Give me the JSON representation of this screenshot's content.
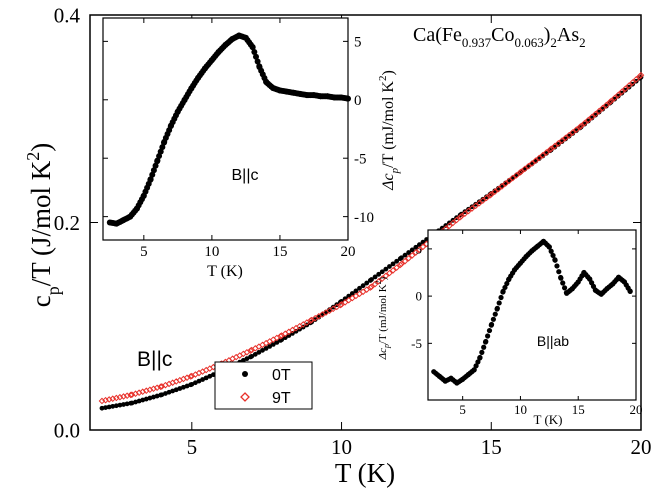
{
  "chart_data": [
    {
      "type": "scatter",
      "role": "main",
      "xlabel": "T (K)",
      "ylabel_main": "c",
      "ylabel_sub": "p",
      "ylabel_tail": "/T (J/mol K",
      "ylabel_sup": "2",
      "ylabel_end": ")",
      "xlim": [
        1.6,
        20
      ],
      "ylim": [
        0,
        0.4
      ],
      "xticks": [
        5,
        10,
        15,
        20
      ],
      "yticks": [
        0.0,
        0.2,
        0.4
      ],
      "xtick_labels": [
        "5",
        "10",
        "15",
        "20"
      ],
      "ytick_labels": [
        "0.0",
        "0.2",
        "0.4"
      ],
      "annotation_formula": {
        "pre": "Ca(Fe",
        "sub1": "0.937",
        "mid": "Co",
        "sub2": "0.063",
        "post": ")",
        "sub3": "2",
        "tail": "As",
        "sub4": "2"
      },
      "annotation_field": "B||c",
      "legend_position": "bottom-center",
      "series": [
        {
          "name": "0T",
          "marker": "filled-circle",
          "color": "#000000",
          "x": [
            2,
            3,
            4,
            5,
            6,
            7,
            8,
            9,
            10,
            11,
            12,
            13,
            14,
            15,
            16,
            17,
            18,
            19,
            20
          ],
          "y": [
            0.021,
            0.026,
            0.034,
            0.044,
            0.057,
            0.071,
            0.087,
            0.104,
            0.124,
            0.145,
            0.166,
            0.187,
            0.208,
            0.228,
            0.249,
            0.27,
            0.292,
            0.316,
            0.34
          ]
        },
        {
          "name": "9T",
          "marker": "open-diamond",
          "color": "#e8302a",
          "x": [
            2,
            3,
            4,
            5,
            6,
            7,
            8,
            9,
            10,
            11,
            12,
            13,
            14,
            15,
            16,
            17,
            18,
            19,
            20
          ],
          "y": [
            0.028,
            0.034,
            0.042,
            0.052,
            0.064,
            0.077,
            0.091,
            0.106,
            0.121,
            0.138,
            0.16,
            0.183,
            0.206,
            0.227,
            0.249,
            0.271,
            0.293,
            0.317,
            0.342
          ]
        }
      ]
    },
    {
      "type": "scatter",
      "role": "inset-upper",
      "xlabel": "T (K)",
      "ylabel": "Δc_p/T (mJ/mol K²)",
      "ylabel_main": "Δc",
      "ylabel_sub": "p",
      "ylabel_tail": "/T (mJ/mol K",
      "ylabel_sup": "2",
      "ylabel_end": ")",
      "xlim": [
        2,
        20
      ],
      "ylim": [
        -12,
        7
      ],
      "xticks": [
        5,
        10,
        15,
        20
      ],
      "yticks": [
        -10,
        -5,
        0,
        5
      ],
      "xtick_labels": [
        "5",
        "10",
        "15",
        "20"
      ],
      "ytick_labels": [
        "-10",
        "-5",
        "0",
        "5"
      ],
      "label": "B||c",
      "series": [
        {
          "name": "",
          "marker": "filled-circle",
          "color": "#000000",
          "x": [
            2.5,
            3,
            3.5,
            4,
            4.5,
            5,
            5.5,
            6,
            6.5,
            7,
            7.5,
            8,
            8.5,
            9,
            9.5,
            10,
            10.5,
            11,
            11.5,
            12,
            12.5,
            13,
            13.5,
            14,
            14.5,
            15,
            15.5,
            16,
            16.5,
            17,
            17.5,
            18,
            18.5,
            19,
            19.5,
            20
          ],
          "y": [
            -10.5,
            -10.6,
            -10.3,
            -10,
            -9.3,
            -8.2,
            -6.8,
            -5.2,
            -3.6,
            -2.2,
            -1,
            0,
            1,
            1.9,
            2.7,
            3.4,
            4.1,
            4.7,
            5.2,
            5.5,
            5.3,
            4.5,
            2.8,
            1.5,
            1,
            0.8,
            0.7,
            0.6,
            0.5,
            0.4,
            0.4,
            0.3,
            0.3,
            0.2,
            0.2,
            0.1
          ]
        }
      ]
    },
    {
      "type": "scatter",
      "role": "inset-lower",
      "xlabel": "T (K)",
      "ylabel": "Δc_p/T (mJ/mol K²)",
      "ylabel_main": "Δc",
      "ylabel_sub": "p",
      "ylabel_tail": "/T (mJ/mol K",
      "ylabel_sup": "2",
      "ylabel_end": ")",
      "xlim": [
        2,
        20
      ],
      "ylim": [
        -11,
        7
      ],
      "xticks": [
        5,
        10,
        15,
        20
      ],
      "yticks": [
        -5,
        0,
        5
      ],
      "xtick_labels": [
        "5",
        "10",
        "15",
        "20"
      ],
      "ytick_labels": [
        "-5",
        "0",
        "5"
      ],
      "label": "B||ab",
      "series": [
        {
          "name": "",
          "marker": "filled-circle",
          "color": "#000000",
          "x": [
            2.5,
            3,
            3.5,
            4,
            4.5,
            5,
            5.5,
            6,
            6.5,
            7,
            7.5,
            8,
            8.5,
            9,
            9.5,
            10,
            10.5,
            11,
            11.5,
            12,
            12.5,
            13,
            13.5,
            14,
            14.5,
            15,
            15.5,
            16,
            16.5,
            17,
            17.5,
            18,
            18.5,
            19,
            19.5
          ],
          "y": [
            -8,
            -8.5,
            -9,
            -8.7,
            -9.2,
            -8.8,
            -8.3,
            -7.8,
            -6.5,
            -4.8,
            -3,
            -1.3,
            0.5,
            1.8,
            2.8,
            3.5,
            4.2,
            4.8,
            5.3,
            5.8,
            5.2,
            3.8,
            1.9,
            0.3,
            0.8,
            1.5,
            2.5,
            1.8,
            0.6,
            0.2,
            0.8,
            1.3,
            2,
            1.5,
            0.5
          ]
        }
      ]
    }
  ]
}
